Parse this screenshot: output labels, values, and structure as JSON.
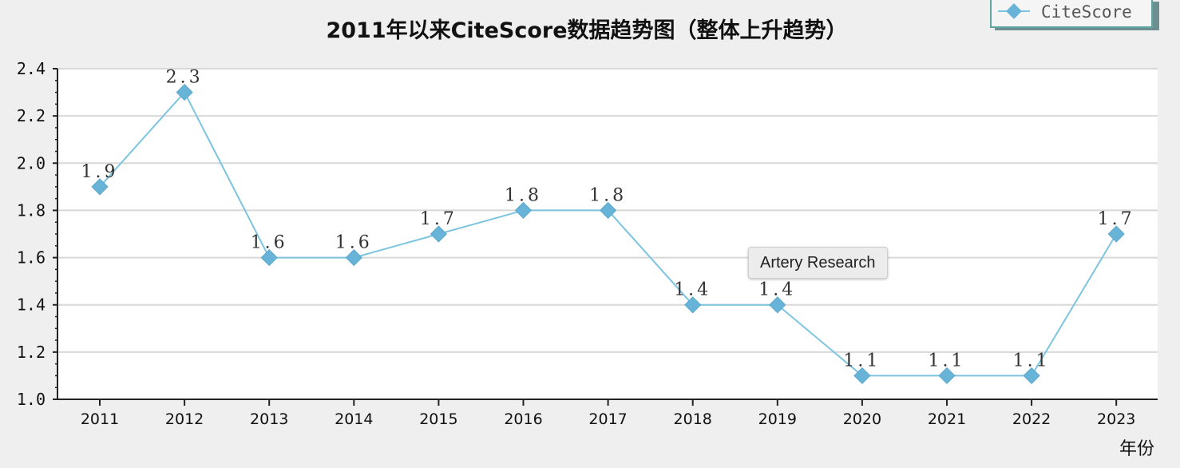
{
  "chart_data": {
    "type": "line",
    "title": "2011年以来CiteScore数据趋势图（整体上升趋势）",
    "xlabel": "年份",
    "ylabel": "",
    "categories": [
      "2011",
      "2012",
      "2013",
      "2014",
      "2015",
      "2016",
      "2017",
      "2018",
      "2019",
      "2020",
      "2021",
      "2022",
      "2023"
    ],
    "series": [
      {
        "name": "CiteScore",
        "values": [
          1.9,
          2.3,
          1.6,
          1.6,
          1.7,
          1.8,
          1.8,
          1.4,
          1.4,
          1.1,
          1.1,
          1.1,
          1.7
        ],
        "value_labels": [
          "1.9",
          "2.3",
          "1.6",
          "1.6",
          "1.7",
          "1.8",
          "1.8",
          "1.4",
          "1.4",
          "1.1",
          "1.1",
          "1.1",
          "1.7"
        ],
        "color": "#7dc4e0",
        "marker_color": "#68b4d8"
      }
    ],
    "yticks": [
      "1.0",
      "1.2",
      "1.4",
      "1.6",
      "1.8",
      "2.0",
      "2.2",
      "2.4"
    ],
    "ylim": [
      1.0,
      2.4
    ],
    "grid": true,
    "legend_position": "top-right"
  },
  "tooltip": {
    "text": "Artery Research"
  },
  "colors": {
    "background": "#efefef",
    "plot_background": "#ffffff",
    "grid": "#d8d8d8",
    "axis": "#222222"
  }
}
